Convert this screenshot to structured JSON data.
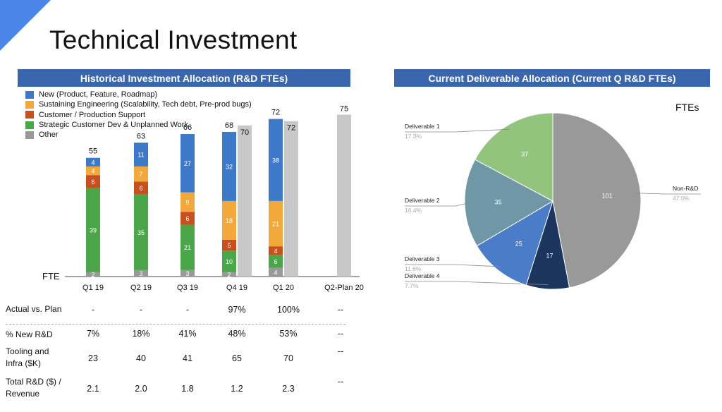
{
  "title": "Technical Investment",
  "corner_color": "#4a86e8",
  "left_header": "Historical Investment Allocation (R&D FTEs)",
  "right_header": "Current Deliverable Allocation (Current Q R&D FTEs)",
  "chart_data": [
    {
      "type": "bar",
      "stacked": true,
      "title": "Historical Investment Allocation (R&D FTEs)",
      "ylabel": "FTE",
      "categories": [
        "Q1 19",
        "Q2 19",
        "Q3 19",
        "Q4 19",
        "Q1 20",
        "Q2-Plan 20"
      ],
      "series": [
        {
          "name": "Other",
          "color": "#999999",
          "values": [
            2,
            3,
            3,
            2,
            4,
            null
          ]
        },
        {
          "name": "Strategic Customer Dev & Unplanned Work",
          "color": "#4aa649",
          "values": [
            39,
            35,
            21,
            10,
            6,
            null
          ]
        },
        {
          "name": "Customer / Production Support",
          "color": "#c8501e",
          "values": [
            6,
            6,
            6,
            5,
            4,
            null
          ]
        },
        {
          "name": "Sustaining Engineering (Scalability, Tech debt, Pre-prod bugs)",
          "color": "#f2a93b",
          "values": [
            4,
            7,
            9,
            18,
            21,
            null
          ]
        },
        {
          "name": "New (Product, Feature, Roadmap)",
          "color": "#3d78c9",
          "values": [
            4,
            11,
            27,
            32,
            38,
            null
          ]
        }
      ],
      "totals": [
        55,
        63,
        66,
        68,
        72,
        null
      ],
      "plan": {
        "color": "#c8c8c8",
        "values": [
          null,
          null,
          null,
          70,
          72,
          75
        ]
      },
      "ylim": [
        0,
        80
      ]
    },
    {
      "type": "pie",
      "title": "Current Deliverable Allocation (Current Q R&D FTEs)",
      "legend_title": "FTEs",
      "slices": [
        {
          "label": "Non-R&D",
          "value": 101,
          "percent": "47.0%",
          "color": "#999999"
        },
        {
          "label": "Deliverable 4",
          "value": 17,
          "percent": "7.7%",
          "color": "#1c355e"
        },
        {
          "label": "Deliverable 3",
          "value": 25,
          "percent": "11.6%",
          "color": "#4a7cc7"
        },
        {
          "label": "Deliverable 2",
          "value": 35,
          "percent": "16.4%",
          "color": "#6f97a6"
        },
        {
          "label": "Deliverable 1",
          "value": 37,
          "percent": "17.3%",
          "color": "#93c47d"
        }
      ]
    }
  ],
  "table": {
    "rows": [
      {
        "label": "Actual vs. Plan",
        "values": [
          "-",
          "-",
          "-",
          "97%",
          "100%",
          "--"
        ]
      },
      {
        "label": "% New R&D",
        "values": [
          "7%",
          "18%",
          "41%",
          "48%",
          "53%",
          "--"
        ]
      },
      {
        "label": "Tooling and\nInfra ($K)",
        "values": [
          "23",
          "40",
          "41",
          "65",
          "70",
          "--"
        ]
      },
      {
        "label": "Total R&D ($) /\nRevenue",
        "values": [
          "2.1",
          "2.0",
          "1.8",
          "1.2",
          "2.3",
          "--"
        ]
      }
    ]
  }
}
